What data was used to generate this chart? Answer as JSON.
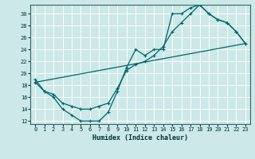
{
  "xlabel": "Humidex (Indice chaleur)",
  "bg_color": "#cce8e8",
  "grid_color": "#ffffff",
  "line_color": "#006666",
  "xlim": [
    -0.5,
    23.5
  ],
  "ylim": [
    11.5,
    31.5
  ],
  "yticks": [
    12,
    14,
    16,
    18,
    20,
    22,
    24,
    26,
    28,
    30
  ],
  "xticks": [
    0,
    1,
    2,
    3,
    4,
    5,
    6,
    7,
    8,
    9,
    10,
    11,
    12,
    13,
    14,
    15,
    16,
    17,
    18,
    19,
    20,
    21,
    22,
    23
  ],
  "curve1_x": [
    0,
    1,
    2,
    3,
    4,
    5,
    6,
    7,
    8,
    9,
    10,
    11,
    12,
    13,
    14,
    15,
    16,
    17,
    18,
    19,
    20,
    21,
    22,
    23
  ],
  "curve1_y": [
    19,
    17,
    16,
    14,
    13,
    12,
    12,
    12,
    13.5,
    17,
    21,
    24,
    23,
    24,
    24,
    30,
    30,
    31,
    31.5,
    30,
    29,
    28.5,
    27,
    25
  ],
  "line2_x": [
    0,
    23
  ],
  "line2_y": [
    18.5,
    25
  ],
  "curve3_x": [
    0,
    1,
    2,
    3,
    4,
    5,
    6,
    7,
    8,
    9,
    10,
    11,
    12,
    13,
    14,
    15,
    16,
    17,
    18,
    19,
    20,
    21,
    22,
    23
  ],
  "curve3_y": [
    18.5,
    17,
    16.5,
    15,
    14.5,
    14,
    14,
    14.5,
    15,
    17.5,
    20.5,
    21.5,
    22,
    23,
    24.5,
    27,
    28.5,
    30,
    31.5,
    30,
    29,
    28.5,
    27,
    25
  ]
}
